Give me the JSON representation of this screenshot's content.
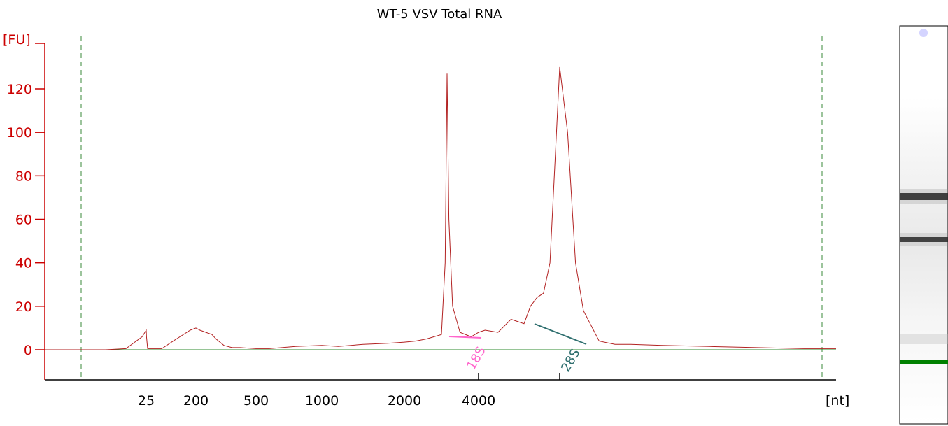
{
  "chart_data": {
    "type": "line",
    "title": "WT-5 VSV Total RNA",
    "ylabel": "[FU]",
    "xlabel": "[nt]",
    "ylim": [
      -14,
      142
    ],
    "yticks": [
      0,
      20,
      40,
      60,
      80,
      100,
      120
    ],
    "xtick_labels": [
      "25",
      "200",
      "500",
      "1000",
      "2000",
      "4000"
    ],
    "x_scale": "nonlinear-size-ladder",
    "grid": false,
    "series": [
      {
        "color": "#b22222",
        "x": [
          0,
          5,
          15,
          20,
          24,
          25,
          26,
          30,
          50,
          80,
          120,
          180,
          200,
          220,
          250,
          280,
          300,
          340,
          380,
          420,
          500,
          600,
          800,
          1000,
          1200,
          1500,
          1800,
          2000,
          2300,
          2600,
          2800,
          3000,
          3100,
          3150,
          3200,
          3300,
          3500,
          3800,
          4000,
          4200,
          4600,
          5000,
          5400,
          5600,
          5800,
          6000,
          6200,
          6400,
          6500,
          6600,
          6700,
          6800,
          7000,
          7200,
          7400,
          7800,
          8400,
          9000,
          9600,
          10000
        ],
        "y": [
          0,
          0,
          0,
          0.5,
          6,
          9,
          6,
          0.5,
          0.5,
          0.5,
          4,
          9,
          10,
          9,
          8,
          7,
          5,
          2,
          1,
          1,
          0.5,
          0.5,
          1.5,
          2,
          1.5,
          2.5,
          3,
          3.5,
          4,
          5,
          6,
          7,
          40,
          127,
          60,
          20,
          8,
          6,
          8,
          9,
          8,
          14,
          12,
          20,
          24,
          26,
          40,
          100,
          130,
          100,
          40,
          18,
          4,
          2.5,
          2.5,
          2,
          1.5,
          1,
          0.5,
          0.5
        ]
      }
    ],
    "baseline": {
      "color": "#2e8b2e",
      "value": 0
    },
    "annotations": [
      {
        "text": "18S",
        "x": 4000,
        "color": "#ff66cc"
      },
      {
        "text": "28S",
        "x": 6500,
        "color": "#2f6f6f"
      }
    ],
    "gel_lane": {
      "bands": [
        {
          "position": "upper",
          "intensity": "strong"
        },
        {
          "position": "middle",
          "intensity": "strong"
        },
        {
          "position": "lower",
          "intensity": "faint"
        }
      ],
      "marker_color": "#008000"
    }
  }
}
